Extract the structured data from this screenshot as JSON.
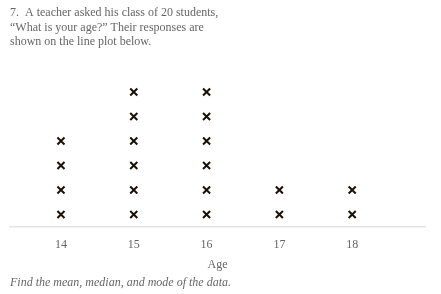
{
  "chart_data": {
    "type": "dotplot",
    "title": [
      "7.  A teacher asked his class of 20 students,",
      "“What is your age?” Their responses are",
      "shown on the line plot below."
    ],
    "annotations": [
      "Find the mean, median, and mode of the data."
    ],
    "xlabel": "Age",
    "x": [
      14,
      15,
      16,
      17,
      18
    ],
    "values": [
      4,
      6,
      6,
      2,
      2
    ],
    "xlim": [
      13.3,
      19.0
    ],
    "xticks": [
      14,
      15,
      16,
      17,
      18
    ],
    "ylim": [
      0,
      7
    ],
    "marker": "x",
    "color": "#1a1208",
    "grid": false,
    "tick_labels": "x"
  }
}
